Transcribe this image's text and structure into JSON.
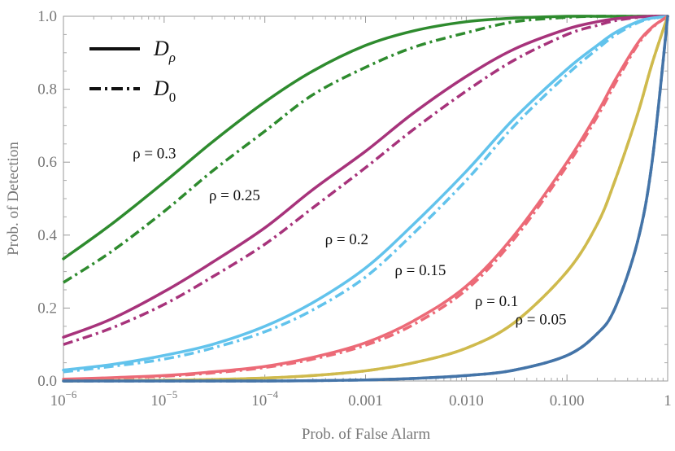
{
  "chart_data": {
    "type": "line",
    "title": "",
    "xlabel": "Prob. of False Alarm",
    "ylabel": "Prob. of Detection",
    "xscale": "log",
    "xlim": [
      1e-06,
      1
    ],
    "ylim": [
      0,
      1
    ],
    "x_ticks": [
      {
        "value": 1e-06,
        "base": "10",
        "exp": "−6"
      },
      {
        "value": 1e-05,
        "base": "10",
        "exp": "−5"
      },
      {
        "value": 0.0001,
        "base": "10",
        "exp": "−4"
      },
      {
        "value": 0.001,
        "text": "0.001"
      },
      {
        "value": 0.01,
        "text": "0.010"
      },
      {
        "value": 0.1,
        "text": "0.100"
      },
      {
        "value": 1,
        "text": "1"
      }
    ],
    "y_ticks": [
      {
        "value": 0,
        "text": "0.0"
      },
      {
        "value": 0.2,
        "text": "0.2"
      },
      {
        "value": 0.4,
        "text": "0.4"
      },
      {
        "value": 0.6,
        "text": "0.6"
      },
      {
        "value": 0.8,
        "text": "0.8"
      },
      {
        "value": 1.0,
        "text": "1.0"
      }
    ],
    "legend": {
      "position": "top-left",
      "entries": [
        {
          "style": "solid",
          "symbol": "D",
          "subscript": "ρ"
        },
        {
          "style": "dash-dot",
          "symbol": "D",
          "subscript": "0"
        }
      ]
    },
    "x": [
      1e-06,
      3e-06,
      1e-05,
      3e-05,
      0.0001,
      0.0003,
      0.001,
      0.003,
      0.01,
      0.03,
      0.1,
      0.2,
      0.3,
      0.5,
      0.7,
      1
    ],
    "series": [
      {
        "name": "ρ = 0.3",
        "label": "ρ = 0.3",
        "color": "#2e8b2e",
        "solid": [
          0.335,
          0.43,
          0.545,
          0.655,
          0.765,
          0.85,
          0.92,
          0.96,
          0.985,
          0.995,
          1.0,
          1.0,
          1.0,
          1.0,
          1.0,
          1.0
        ],
        "dashed": [
          0.27,
          0.355,
          0.465,
          0.575,
          0.685,
          0.785,
          0.86,
          0.915,
          0.955,
          0.985,
          0.997,
          1.0,
          1.0,
          1.0,
          1.0,
          1.0
        ]
      },
      {
        "name": "ρ = 0.25",
        "label": "ρ = 0.25",
        "color": "#a7337b",
        "solid": [
          0.12,
          0.17,
          0.245,
          0.325,
          0.42,
          0.525,
          0.63,
          0.735,
          0.835,
          0.91,
          0.965,
          0.985,
          0.993,
          0.998,
          1.0,
          1.0
        ],
        "dashed": [
          0.1,
          0.145,
          0.21,
          0.285,
          0.375,
          0.475,
          0.585,
          0.69,
          0.795,
          0.88,
          0.95,
          0.975,
          0.988,
          0.997,
          1.0,
          1.0
        ]
      },
      {
        "name": "ρ = 0.2",
        "label": "ρ = 0.2",
        "color": "#62c3ec",
        "solid": [
          0.03,
          0.045,
          0.07,
          0.1,
          0.15,
          0.215,
          0.31,
          0.43,
          0.575,
          0.72,
          0.855,
          0.92,
          0.955,
          0.985,
          0.995,
          1.0
        ],
        "dashed": [
          0.025,
          0.04,
          0.06,
          0.09,
          0.135,
          0.195,
          0.285,
          0.405,
          0.55,
          0.7,
          0.84,
          0.91,
          0.948,
          0.982,
          0.994,
          1.0
        ]
      },
      {
        "name": "ρ = 0.15",
        "label": "ρ = 0.15",
        "color": "#ec6a77",
        "solid": [
          0.005,
          0.009,
          0.015,
          0.025,
          0.04,
          0.065,
          0.105,
          0.165,
          0.26,
          0.4,
          0.6,
          0.735,
          0.825,
          0.925,
          0.97,
          1.0
        ],
        "dashed": [
          0.004,
          0.008,
          0.013,
          0.022,
          0.037,
          0.06,
          0.098,
          0.155,
          0.25,
          0.39,
          0.59,
          0.725,
          0.815,
          0.92,
          0.968,
          1.0
        ]
      },
      {
        "name": "ρ = 0.1",
        "label": "ρ = 0.1",
        "color": "#cfba4d",
        "solid": [
          0.0,
          0.001,
          0.002,
          0.004,
          0.008,
          0.015,
          0.028,
          0.05,
          0.09,
          0.16,
          0.3,
          0.43,
          0.55,
          0.73,
          0.87,
          1.0
        ],
        "dashed": [
          0.0,
          0.001,
          0.002,
          0.004,
          0.008,
          0.015,
          0.028,
          0.05,
          0.09,
          0.16,
          0.3,
          0.43,
          0.55,
          0.73,
          0.87,
          1.0
        ]
      },
      {
        "name": "ρ = 0.05",
        "label": "ρ = 0.05",
        "color": "#4474a8",
        "solid": [
          0.0,
          0.0,
          0.0,
          0.0,
          0.0,
          0.001,
          0.003,
          0.007,
          0.015,
          0.03,
          0.07,
          0.13,
          0.2,
          0.38,
          0.6,
          1.0
        ],
        "dashed": [
          0.0,
          0.0,
          0.0,
          0.0,
          0.0,
          0.001,
          0.003,
          0.007,
          0.015,
          0.03,
          0.07,
          0.13,
          0.2,
          0.38,
          0.6,
          1.0
        ]
      }
    ],
    "annotations": [
      {
        "text": "ρ = 0.3",
        "x": 8e-06,
        "y": 0.61
      },
      {
        "text": "ρ = 0.25",
        "x": 5e-05,
        "y": 0.495
      },
      {
        "text": "ρ = 0.2",
        "x": 0.00065,
        "y": 0.375
      },
      {
        "text": "ρ = 0.15",
        "x": 0.0035,
        "y": 0.29
      },
      {
        "text": "ρ = 0.1",
        "x": 0.02,
        "y": 0.205
      },
      {
        "text": "ρ = 0.05",
        "x": 0.055,
        "y": 0.155
      }
    ]
  }
}
